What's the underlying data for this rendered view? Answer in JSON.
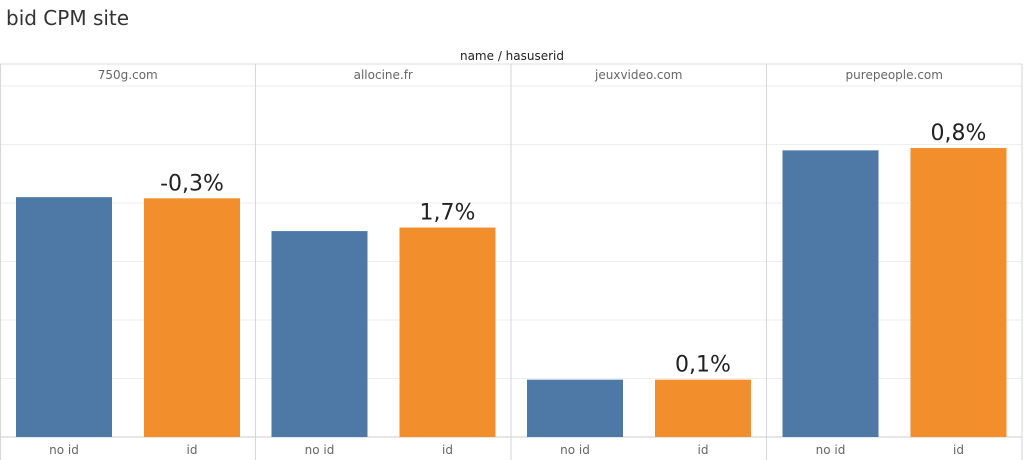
{
  "title": "bid CPM site",
  "chart_data": {
    "type": "bar",
    "column_header": "name / hasuserid",
    "panes": [
      "750g.com",
      "allocine.fr",
      "jeuxvideo.com",
      "purepeople.com"
    ],
    "categories": [
      "no id",
      "id"
    ],
    "values": [
      [
        4.1,
        4.08
      ],
      [
        3.52,
        3.58
      ],
      [
        0.98,
        0.98
      ],
      [
        4.9,
        4.94
      ]
    ],
    "labels": [
      "-0,3%",
      "1,7%",
      "0,1%",
      "0,8%"
    ],
    "ylim": [
      0,
      6
    ],
    "colors": {
      "no id": "#4e79a7",
      "id": "#f28e2b"
    },
    "grid": true
  }
}
